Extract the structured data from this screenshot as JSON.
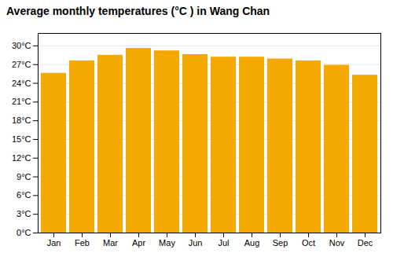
{
  "chart_data": {
    "type": "bar",
    "title": "Average monthly temperatures (°C ) in Wang Chan",
    "categories": [
      "Jan",
      "Feb",
      "Mar",
      "Apr",
      "May",
      "Jun",
      "Jul",
      "Aug",
      "Sep",
      "Oct",
      "Nov",
      "Dec"
    ],
    "values": [
      25.6,
      27.6,
      28.5,
      29.6,
      29.2,
      28.6,
      28.2,
      28.2,
      27.9,
      27.6,
      26.9,
      25.3
    ],
    "color": "#F5A800",
    "ylim": [
      0,
      32
    ],
    "yticks": [
      {
        "value": 0,
        "label": "0°C"
      },
      {
        "value": 3,
        "label": "3°C"
      },
      {
        "value": 6,
        "label": "6°C"
      },
      {
        "value": 9,
        "label": "9°C"
      },
      {
        "value": 12,
        "label": "12°C"
      },
      {
        "value": 15,
        "label": "15°C"
      },
      {
        "value": 18,
        "label": "18°C"
      },
      {
        "value": 21,
        "label": "21°C"
      },
      {
        "value": 24,
        "label": "24°C"
      },
      {
        "value": 27,
        "label": "27°C"
      },
      {
        "value": 30,
        "label": "30°C"
      }
    ],
    "grid": true
  }
}
